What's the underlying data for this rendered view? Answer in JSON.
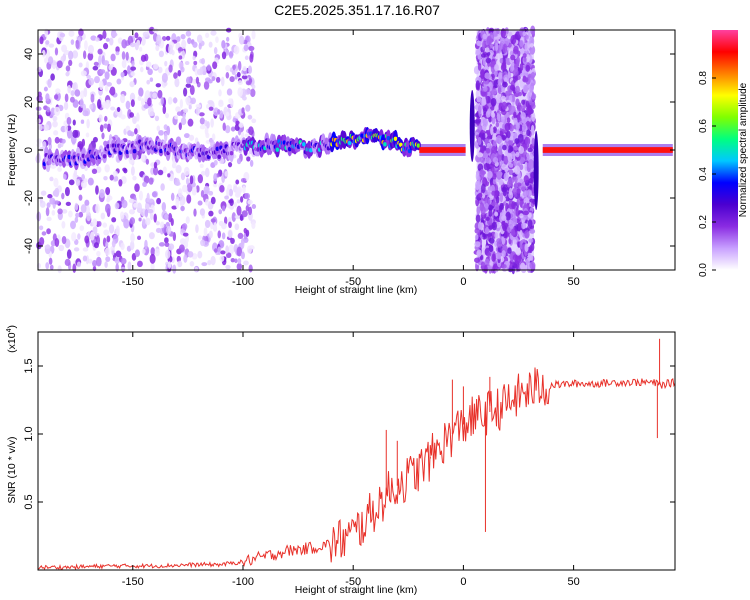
{
  "title": "C2E5.2025.351.17.16.R07",
  "chart_data": [
    {
      "type": "heatmap",
      "title": "C2E5.2025.351.17.16.R07",
      "xlabel": "Height of straight line (km)",
      "ylabel": "Frequency (Hz)",
      "xlim": [
        -193,
        96
      ],
      "ylim": [
        -50,
        50
      ],
      "x_ticks": [
        -150,
        -100,
        -50,
        0,
        50
      ],
      "y_ticks": [
        -40,
        -20,
        0,
        20,
        40
      ],
      "colorbar": {
        "label": "Normalized spectral amplitude",
        "range": [
          0,
          1
        ],
        "ticks": [
          0.0,
          0.2,
          0.4,
          0.6,
          0.8
        ],
        "colormap": [
          "#ffffff",
          "#c8a0ff",
          "#8a2be2",
          "#4b00d0",
          "#0000ff",
          "#00c8ff",
          "#00ff80",
          "#80ff00",
          "#ffff00",
          "#ff8000",
          "#ff0000",
          "#ff40a0"
        ]
      },
      "ridge": {
        "x": [
          -190,
          -175,
          -160,
          -145,
          -130,
          -115,
          -100,
          -85,
          -70,
          -55,
          -45,
          -35,
          -25,
          -15,
          -5,
          2,
          36,
          50,
          70,
          95
        ],
        "y": [
          -4,
          -4,
          0,
          2,
          0,
          -2,
          2,
          2,
          1,
          3,
          6,
          4,
          1,
          0,
          0,
          0,
          0,
          0,
          0,
          0
        ]
      },
      "vertical_spikes": [
        {
          "x": 4,
          "y_range": [
            -5,
            25
          ]
        },
        {
          "x": 33,
          "y_range": [
            -25,
            8
          ]
        }
      ],
      "noise_bands": [
        {
          "x_range": [
            -193,
            -95
          ],
          "level": "sparse"
        },
        {
          "x_range": [
            6,
            32
          ],
          "level": "dense"
        }
      ]
    },
    {
      "type": "line",
      "xlabel": "Height of straight line (km)",
      "ylabel": "SNR (10 * v/v)",
      "y_scale_label": "(x10",
      "y_scale_exp": "4",
      "xlim": [
        -193,
        96
      ],
      "ylim": [
        0,
        1.75
      ],
      "x_ticks": [
        -150,
        -100,
        -50,
        0,
        50
      ],
      "y_ticks": [
        0.5,
        1.0,
        1.5
      ],
      "y_tick_labels": [
        "0.5",
        "1.0",
        "1.5"
      ],
      "series": [
        {
          "color": "#e8312a",
          "x": [
            -193,
            -180,
            -160,
            -140,
            -120,
            -110,
            -100,
            -90,
            -80,
            -70,
            -60,
            -50,
            -45,
            -40,
            -35,
            -30,
            -25,
            -20,
            -15,
            -10,
            -5,
            0,
            5,
            10,
            15,
            20,
            25,
            30,
            35,
            40,
            50,
            60,
            70,
            80,
            85,
            88,
            90,
            92,
            96
          ],
          "values": [
            0.02,
            0.02,
            0.03,
            0.03,
            0.04,
            0.04,
            0.06,
            0.1,
            0.14,
            0.16,
            0.19,
            0.26,
            0.35,
            0.45,
            0.55,
            0.62,
            0.68,
            0.74,
            0.82,
            0.92,
            1.0,
            1.07,
            1.12,
            1.15,
            1.18,
            1.22,
            1.28,
            1.32,
            1.35,
            1.36,
            1.37,
            1.37,
            1.38,
            1.38,
            1.38,
            1.37,
            1.36,
            1.37,
            1.38
          ],
          "spikes": [
            {
              "x": -35,
              "value": 1.03
            },
            {
              "x": -30,
              "value": 0.95
            },
            {
              "x": -15,
              "value": 0.83
            },
            {
              "x": -5,
              "value": 1.4
            },
            {
              "x": 0,
              "value": 1.35
            },
            {
              "x": 10,
              "value": 0.28
            },
            {
              "x": 12,
              "value": 1.42
            },
            {
              "x": 88,
              "value": 0.97
            },
            {
              "x": 89,
              "value": 1.7
            }
          ]
        }
      ]
    }
  ]
}
